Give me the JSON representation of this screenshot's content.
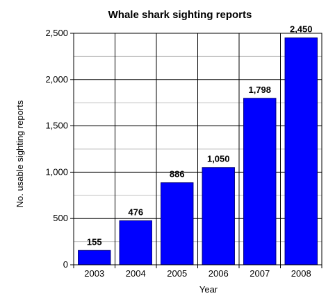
{
  "chart_data": {
    "type": "bar",
    "title": "Whale shark sighting reports",
    "xlabel": "Year",
    "ylabel": "No. usable sighting reports",
    "categories": [
      "2003",
      "2004",
      "2005",
      "2006",
      "2007",
      "2008"
    ],
    "values": [
      155,
      476,
      886,
      1050,
      1798,
      2450
    ],
    "data_labels": [
      "155",
      "476",
      "886",
      "1,050",
      "1,798",
      "2,450"
    ],
    "ylim": [
      0,
      2500
    ],
    "yticks": [
      0,
      500,
      1000,
      1500,
      2000,
      2500
    ],
    "ytick_labels": [
      "0",
      "500",
      "1,000",
      "1,500",
      "2,000",
      "2,500"
    ],
    "minor_gridlines_every": 250,
    "grid": true,
    "bar_color": "#0000ff",
    "bar_edge_color": "#000080"
  }
}
